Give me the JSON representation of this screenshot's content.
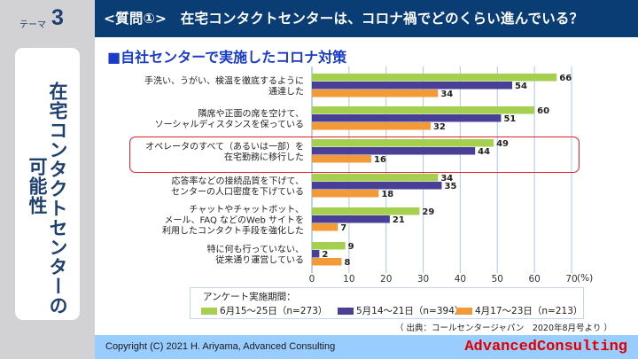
{
  "theme": {
    "label": "テーマ",
    "number": "3"
  },
  "header": {
    "title": "<質問①>　在宅コンタクトセンターは、コロナ禍でどのくらい進んでいる？"
  },
  "side": {
    "line1": "在宅コンタクトセンターの",
    "line2": "可能性"
  },
  "subtitle": "■自社センターで実施したコロナ対策",
  "chart_data": {
    "type": "bar",
    "orientation": "horizontal",
    "title": "自社センターで実施したコロナ対策",
    "categories": [
      [
        "手洗い、うがい、検温を徹底するように",
        "通達した"
      ],
      [
        "隣席や正面の席を空けて、",
        "ソーシャルディスタンスを保っている"
      ],
      [
        "オペレータのすべて（あるいは一部）を",
        "在宅勤務に移行した"
      ],
      [
        "応答率などの接続品質を下げて、",
        "センターの人口密度を下げている"
      ],
      [
        "チャットやチャットボット、",
        "メール、FAQ などのWeb サイトを",
        "利用したコンタクト手段を強化した"
      ],
      [
        "特に何も行っていない、",
        "従来通り運営している"
      ]
    ],
    "series": [
      {
        "name": "6月15〜25日（n=273）",
        "color": "#a5cf4f",
        "values": [
          66,
          60,
          49,
          34,
          29,
          9
        ]
      },
      {
        "name": "5月14〜21日（n=394）",
        "color": "#4a3f96",
        "values": [
          54,
          51,
          44,
          35,
          21,
          2
        ]
      },
      {
        "name": "4月17〜23日（n=213）",
        "color": "#f29a38",
        "values": [
          34,
          32,
          16,
          18,
          7,
          8
        ]
      }
    ],
    "xlim": [
      0,
      70
    ],
    "xticks": [
      "0",
      "10",
      "20",
      "30",
      "40",
      "50",
      "60",
      "70"
    ],
    "xunit": "(%)",
    "grid": true,
    "highlighted_category": 2,
    "legend_title": "アンケート実施期間：",
    "legend_position": "bottom"
  },
  "source": "（ 出典：コールセンタージャパン　2020年8月号より ）",
  "footer": {
    "copyright": "Copyright (C) 2021  H. Ariyama, Advanced Consulting",
    "brand": "AdvancedConsulting"
  }
}
